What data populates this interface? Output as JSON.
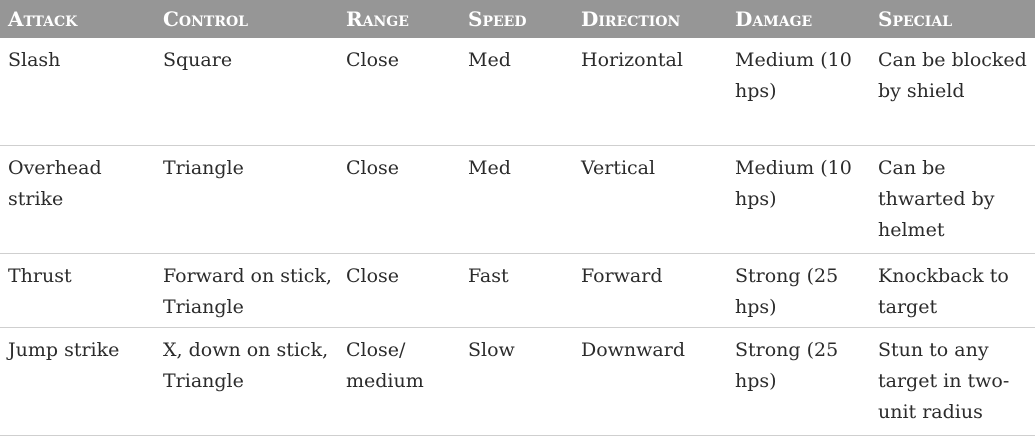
{
  "table": {
    "headers": [
      "Attack",
      "Control",
      "Range",
      "Speed",
      "Direction",
      "Damage",
      "Special"
    ],
    "rows": [
      [
        "Slash",
        "Square",
        "Close",
        "Med",
        "Horizontal",
        "Medium (10 hps)",
        "Can be blocked by shield"
      ],
      [
        "Overhead strike",
        "Triangle",
        "Close",
        "Med",
        "Vertical",
        "Medium (10 hps)",
        "Can be thwarted by helmet"
      ],
      [
        "Thrust",
        "Forward on stick, Triangle",
        "Close",
        "Fast",
        "Forward",
        "Strong (25 hps)",
        "Knockback to target"
      ],
      [
        "Jump strike",
        "X, down on stick, Triangle",
        "Close/ medium",
        "Slow",
        "Downward",
        "Strong (25 hps)",
        "Stun to any target in two-unit radius"
      ]
    ]
  }
}
